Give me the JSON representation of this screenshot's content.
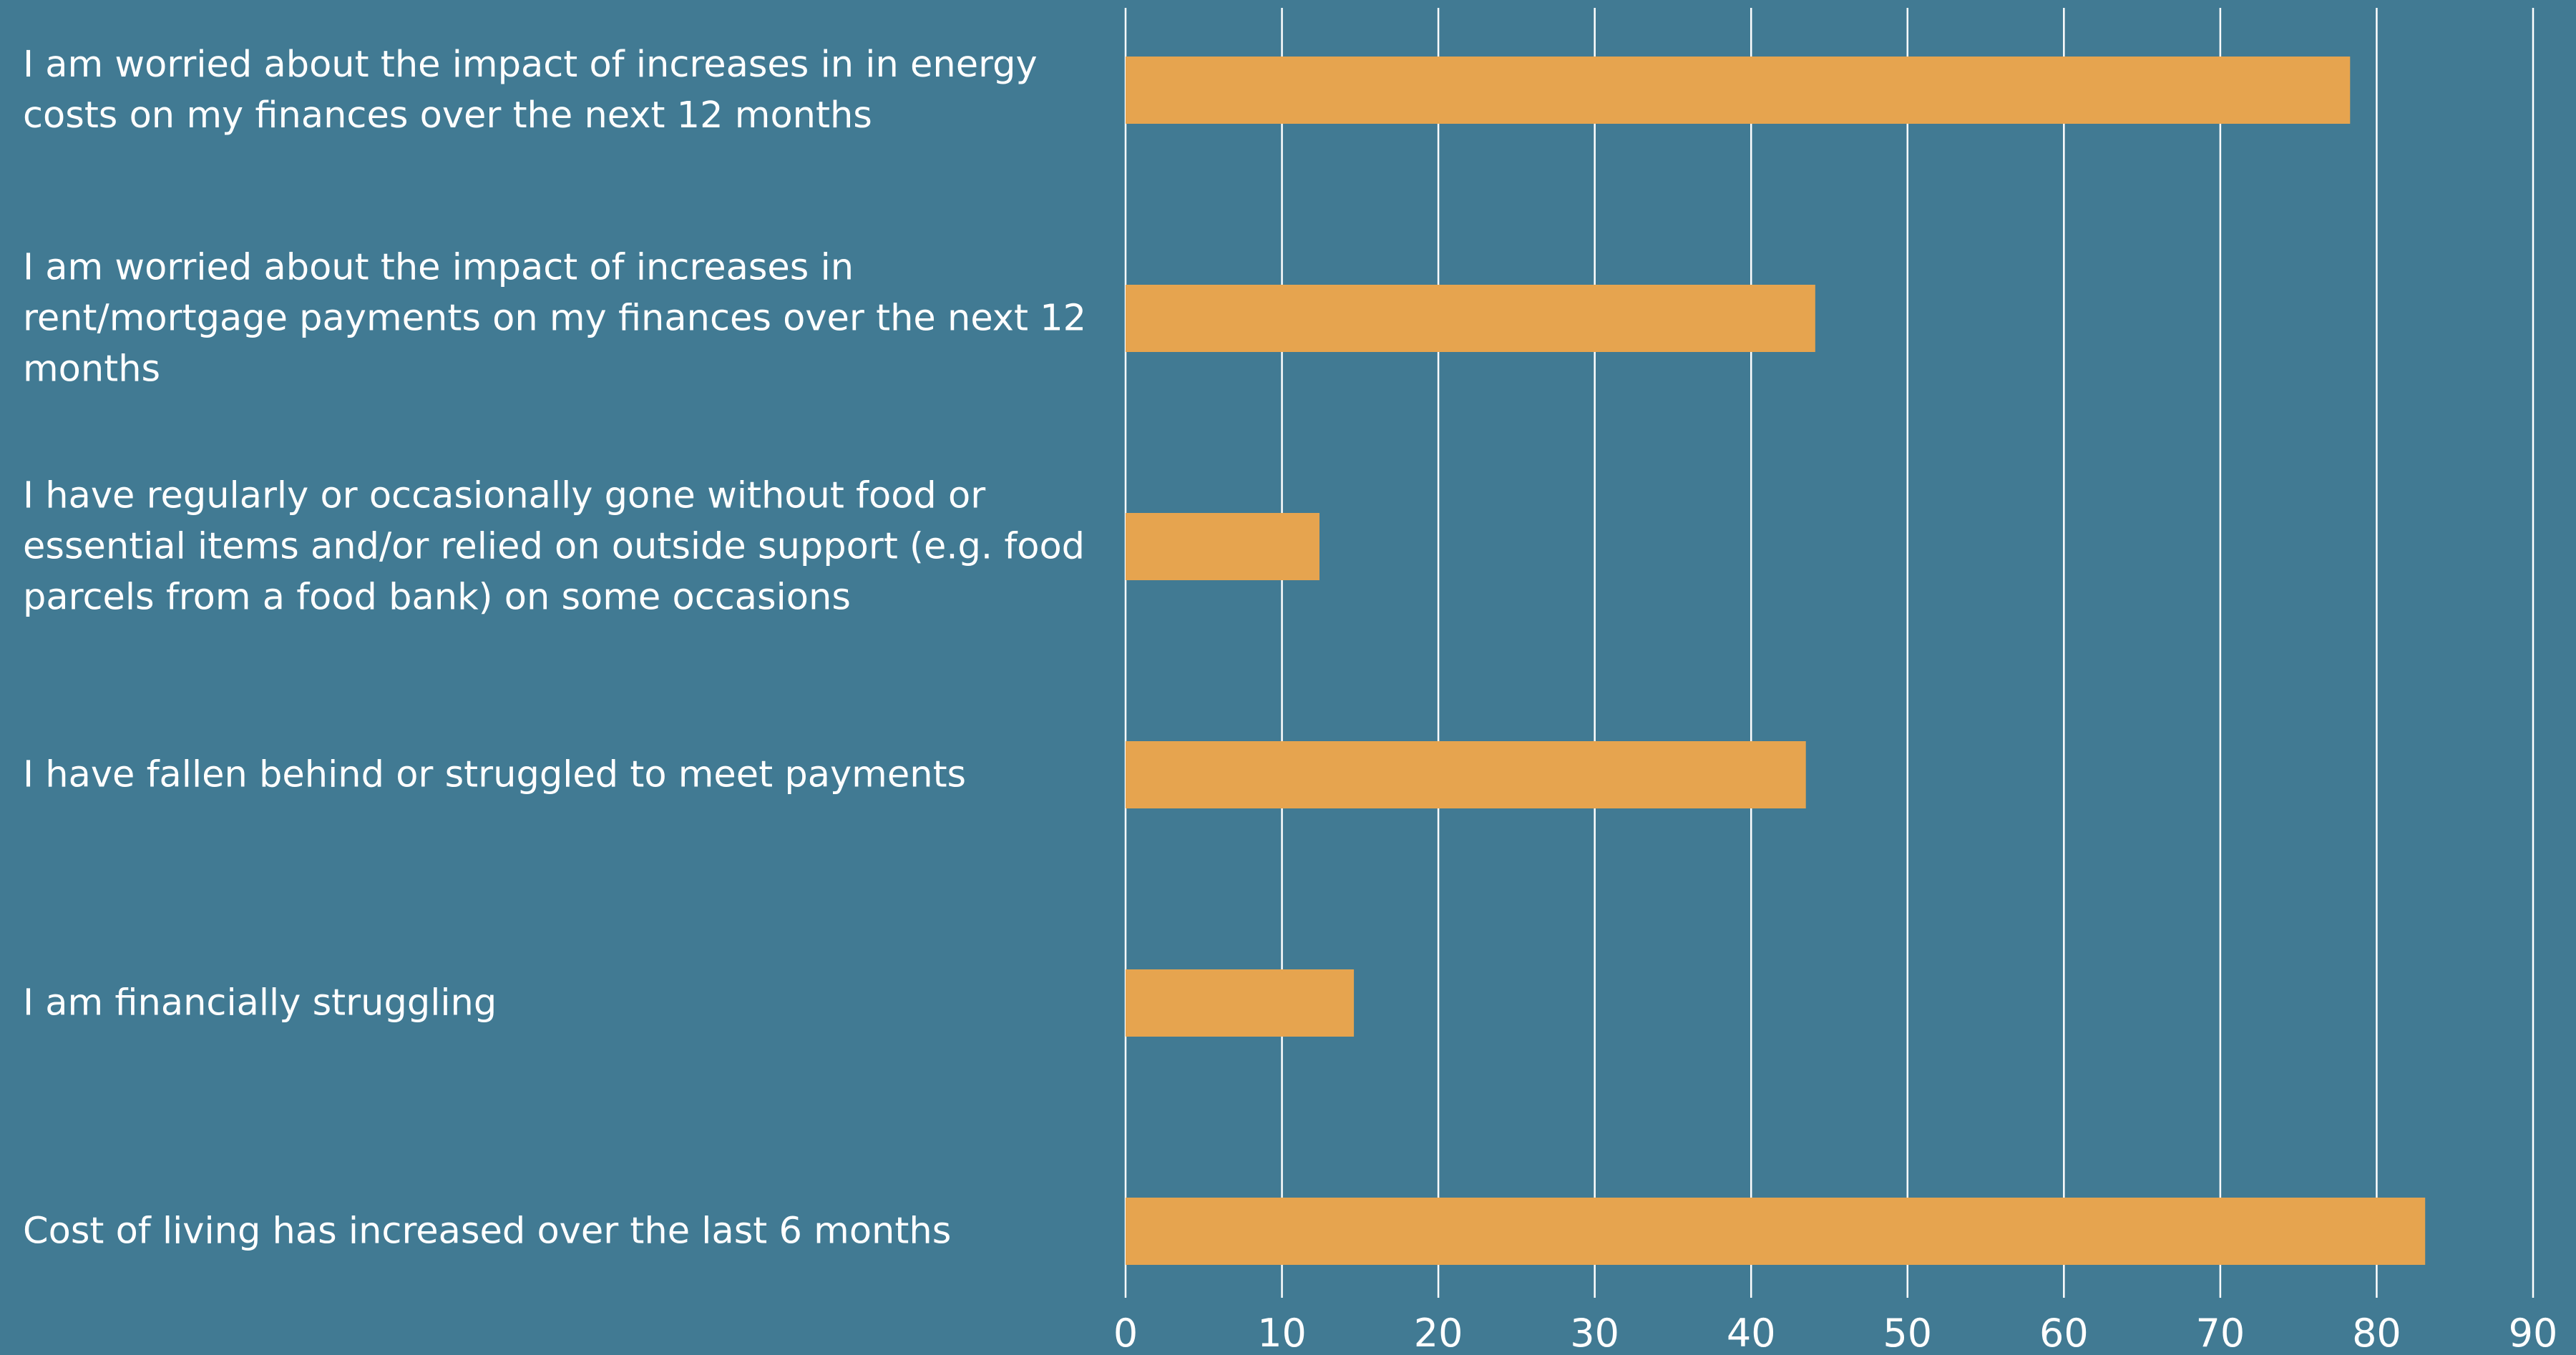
{
  "chart_data": {
    "type": "bar",
    "orientation": "horizontal",
    "categories": [
      "I am worried about the impact of increases in in energy costs on my finances over the next 12 months",
      "I am worried about the impact of increases in rent/mortgage payments on my finances over the next 12 months",
      "I have regularly or occasionally gone without food or essential items and/or relied on outside support (e.g. food parcels from a food bank) on some occasions",
      "I have fallen behind or struggled to meet payments",
      "I am financially struggling",
      "Cost of living has increased over the last 6 months"
    ],
    "values": [
      78.3,
      44.1,
      12.4,
      43.5,
      14.6,
      83.1
    ],
    "color": "#e6a44f",
    "xlim": [
      0,
      90
    ],
    "xticks": [
      0,
      10,
      20,
      30,
      40,
      50,
      60,
      70,
      80,
      90
    ],
    "grid": true
  }
}
